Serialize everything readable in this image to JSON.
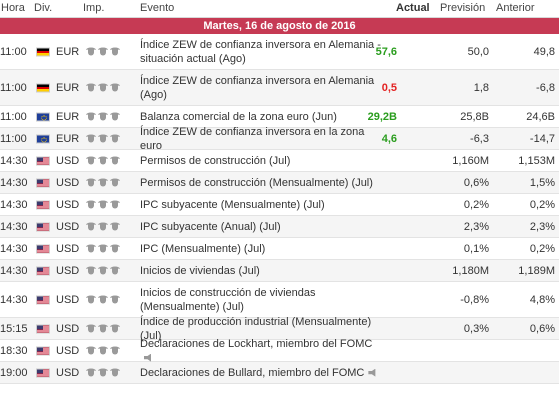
{
  "header": {
    "time": "Hora",
    "currency": "Div.",
    "importance": "Imp.",
    "event": "Evento",
    "actual": "Actual",
    "forecast": "Previsión",
    "previous": "Anterior"
  },
  "date_label": "Martes, 16 de agosto de 2016",
  "colors": {
    "date_bar": "#c63a54",
    "positive": "#2a9d1e",
    "negative": "#e32222"
  },
  "rows": [
    {
      "time": "11:00",
      "flag": "de",
      "currency": "EUR",
      "event": "Índice ZEW de confianza inversora en Alemania - situación actual (Ago)",
      "actual": "57,6",
      "actual_color": "green",
      "forecast": "50,0",
      "previous": "49,8",
      "tall": true
    },
    {
      "time": "11:00",
      "flag": "de",
      "currency": "EUR",
      "event": "Índice ZEW de confianza inversora en Alemania (Ago)",
      "actual": "0,5",
      "actual_color": "red",
      "forecast": "1,8",
      "previous": "-6,8",
      "tall": true
    },
    {
      "time": "11:00",
      "flag": "eu",
      "currency": "EUR",
      "event": "Balanza comercial de la zona euro (Jun)",
      "actual": "29,2B",
      "actual_color": "green",
      "forecast": "25,8B",
      "previous": "24,6B"
    },
    {
      "time": "11:00",
      "flag": "eu",
      "currency": "EUR",
      "event": "Índice ZEW de confianza inversora en la zona euro",
      "actual": "4,6",
      "actual_color": "green",
      "forecast": "-6,3",
      "previous": "-14,7"
    },
    {
      "time": "14:30",
      "flag": "us",
      "currency": "USD",
      "event": "Permisos de construcción (Jul)",
      "actual": "",
      "forecast": "1,160M",
      "previous": "1,153M"
    },
    {
      "time": "14:30",
      "flag": "us",
      "currency": "USD",
      "event": "Permisos de construcción (Mensualmente) (Jul)",
      "actual": "",
      "forecast": "0,6%",
      "previous": "1,5%"
    },
    {
      "time": "14:30",
      "flag": "us",
      "currency": "USD",
      "event": "IPC subyacente (Mensualmente) (Jul)",
      "actual": "",
      "forecast": "0,2%",
      "previous": "0,2%"
    },
    {
      "time": "14:30",
      "flag": "us",
      "currency": "USD",
      "event": "IPC subyacente (Anual) (Jul)",
      "actual": "",
      "forecast": "2,3%",
      "previous": "2,3%"
    },
    {
      "time": "14:30",
      "flag": "us",
      "currency": "USD",
      "event": "IPC (Mensualmente) (Jul)",
      "actual": "",
      "forecast": "0,1%",
      "previous": "0,2%"
    },
    {
      "time": "14:30",
      "flag": "us",
      "currency": "USD",
      "event": "Inicios de viviendas (Jul)",
      "actual": "",
      "forecast": "1,180M",
      "previous": "1,189M"
    },
    {
      "time": "14:30",
      "flag": "us",
      "currency": "USD",
      "event": "Inicios de construcción de viviendas (Mensualmente) (Jul)",
      "actual": "",
      "forecast": "-0,8%",
      "previous": "4,8%",
      "tall": true
    },
    {
      "time": "15:15",
      "flag": "us",
      "currency": "USD",
      "event": "Índice de producción industrial (Mensualmente) (Jul)",
      "actual": "",
      "forecast": "0,3%",
      "previous": "0,6%"
    },
    {
      "time": "18:30",
      "flag": "us",
      "currency": "USD",
      "event": "Declaraciones de Lockhart, miembro del FOMC",
      "actual": "",
      "forecast": "",
      "previous": "",
      "speech": true
    },
    {
      "time": "19:00",
      "flag": "us",
      "currency": "USD",
      "event": "Declaraciones de Bullard, miembro del FOMC",
      "actual": "",
      "forecast": "",
      "previous": "",
      "speech": true
    }
  ]
}
